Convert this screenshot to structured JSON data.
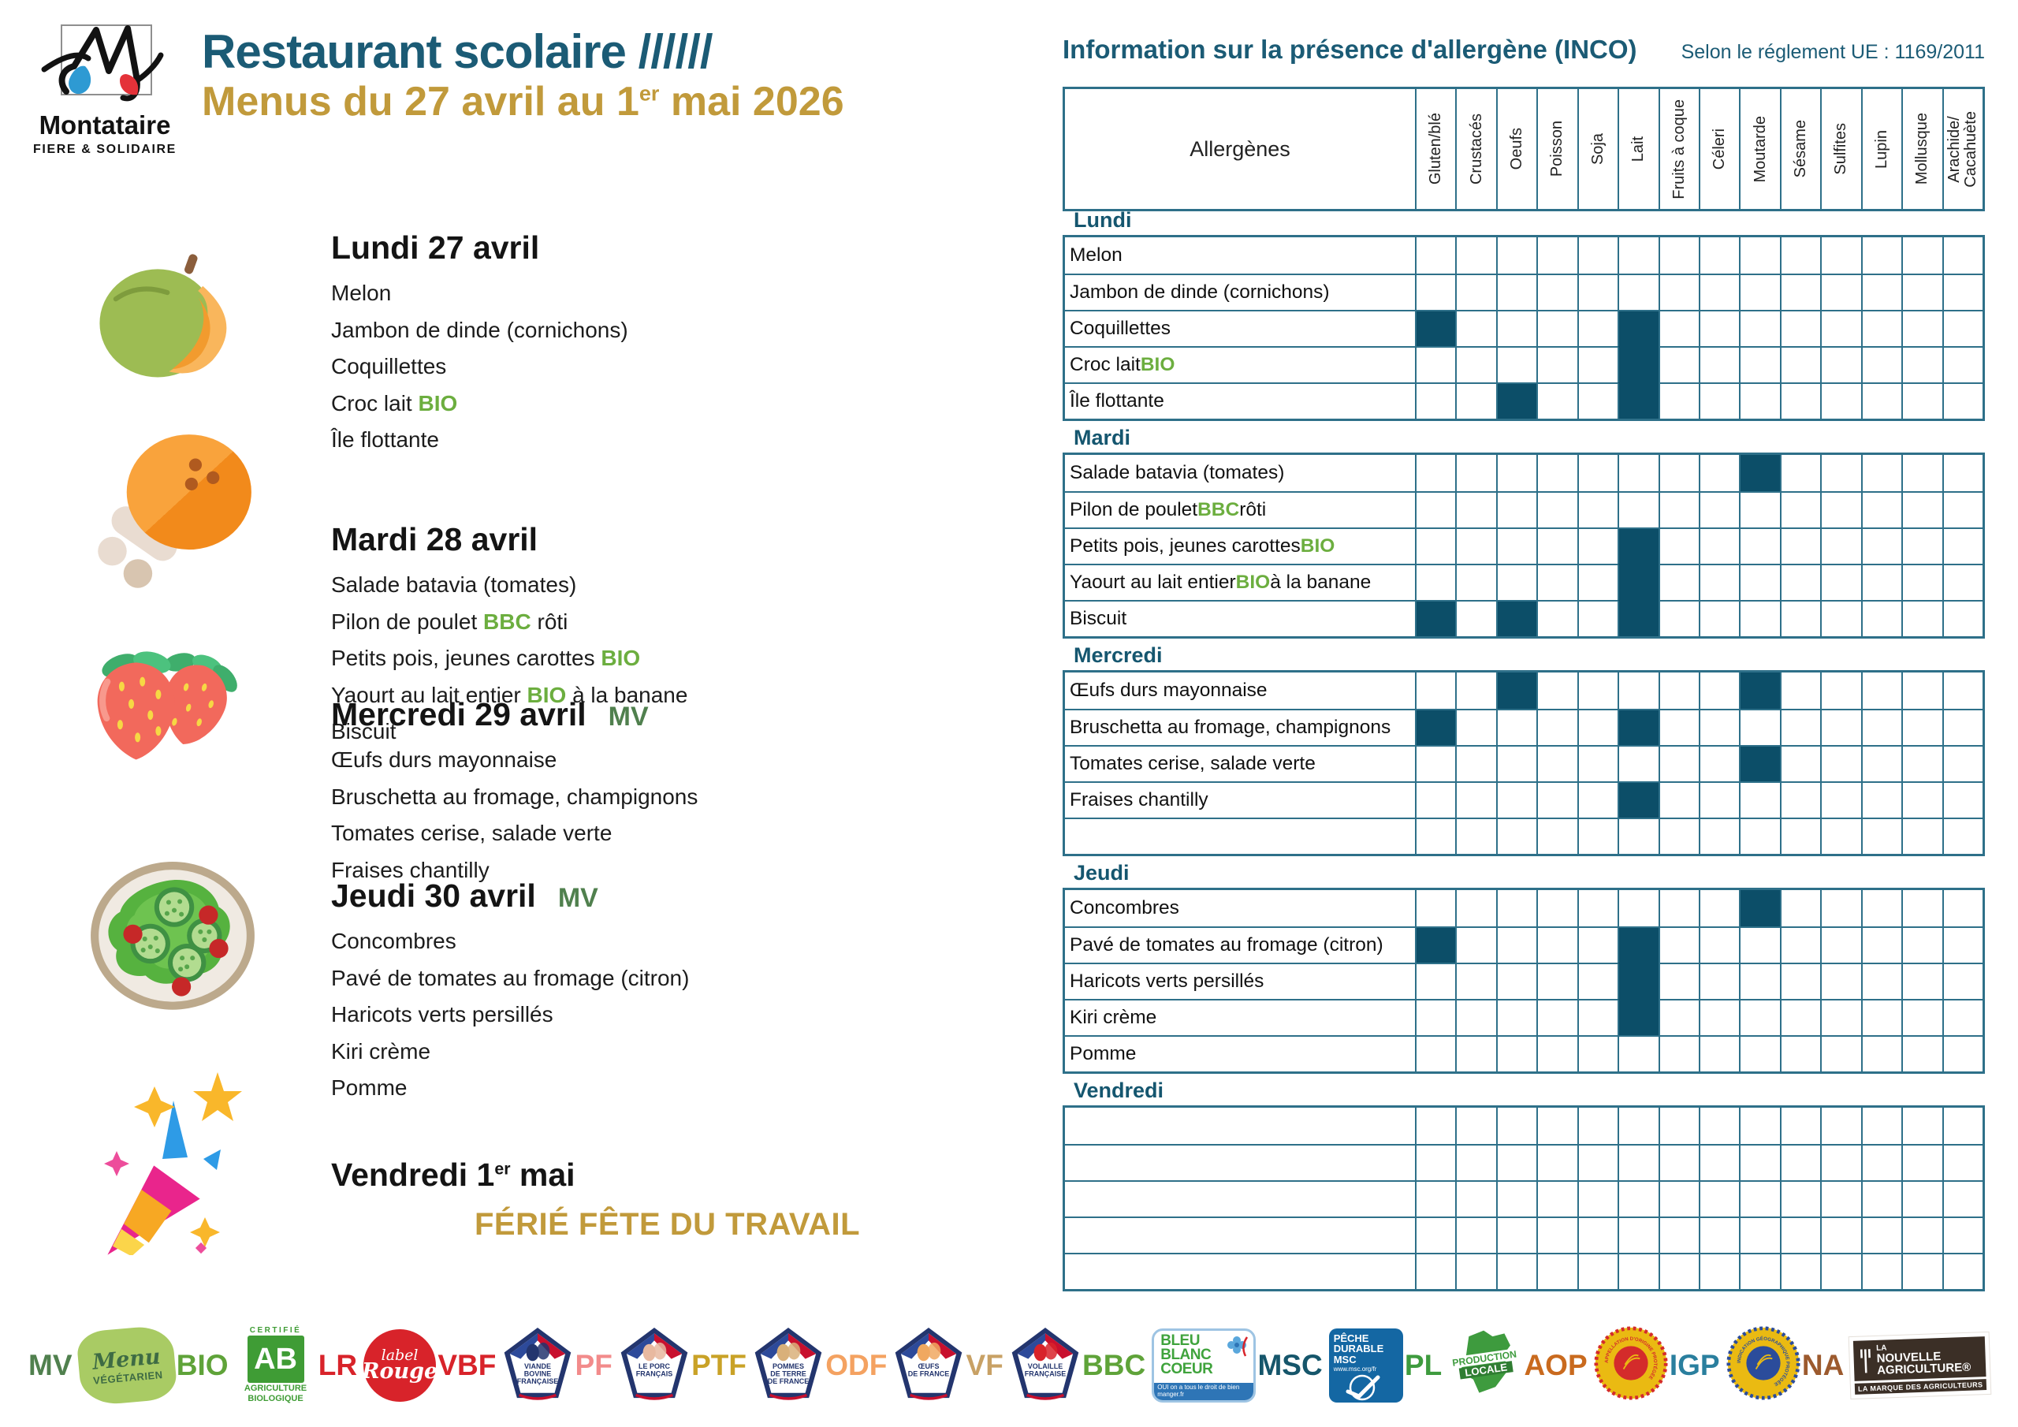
{
  "colors": {
    "teal": "#1B5B75",
    "grid": "#2E7089",
    "cell_fill": "#0C4E68",
    "gold": "#C19A3B",
    "bio_green": "#6CAE3F",
    "mv_green": "#50804E"
  },
  "brand": {
    "name": "Montataire",
    "tagline": "FIERE & SOLIDAIRE"
  },
  "header": {
    "title": "Restaurant scolaire //////",
    "subtitle": {
      "pre": "Menus du 27 avril au 1",
      "sup": "er",
      "post": " mai 2026"
    }
  },
  "allergen_panel": {
    "title": "Information sur la présence d'allergène (INCO)",
    "regulation": "Selon le réglement UE : 1169/2011",
    "col_header": "Allergènes",
    "allergens": [
      "Gluten/blé",
      "Crustacés",
      "Oeufs",
      "Poisson",
      "Soja",
      "Lait",
      "Fruits à coque",
      "Céleri",
      "Moutarde",
      "Sésame",
      "Sulfites",
      "Lupin",
      "Mollusque",
      "Arachide/\nCacahuète"
    ]
  },
  "menu": {
    "days": [
      {
        "id": "lundi",
        "icon": "melon-icon",
        "heading": {
          "pre": "Lundi 27 avril",
          "sup": "",
          "post": ""
        },
        "tag": "",
        "items": [
          [
            {
              "text": "Melon"
            }
          ],
          [
            {
              "text": "Jambon de dinde (cornichons)"
            }
          ],
          [
            {
              "text": "Coquillettes"
            }
          ],
          [
            {
              "text": "Croc lait "
            },
            {
              "text": "BIO",
              "green": true
            }
          ],
          [
            {
              "text": "Île flottante"
            }
          ]
        ]
      },
      {
        "id": "mardi",
        "icon": "drumstick-icon",
        "heading": {
          "pre": "Mardi 28 avril",
          "sup": "",
          "post": ""
        },
        "tag": "",
        "items": [
          [
            {
              "text": "Salade batavia (tomates)"
            }
          ],
          [
            {
              "text": "Pilon de poulet "
            },
            {
              "text": "BBC",
              "green": true
            },
            {
              "text": " rôti"
            }
          ],
          [
            {
              "text": "Petits pois, jeunes carottes "
            },
            {
              "text": "BIO",
              "green": true
            }
          ],
          [
            {
              "text": "Yaourt au lait entier "
            },
            {
              "text": "BIO",
              "green": true
            },
            {
              "text": " à la banane"
            }
          ],
          [
            {
              "text": "Biscuit"
            }
          ]
        ]
      },
      {
        "id": "mercredi",
        "icon": "strawberries-icon",
        "heading": {
          "pre": "Mercredi 29 avril",
          "sup": "",
          "post": ""
        },
        "tag": "MV",
        "items": [
          [
            {
              "text": "Œufs durs mayonnaise"
            }
          ],
          [
            {
              "text": "Bruschetta au fromage, champignons"
            }
          ],
          [
            {
              "text": "Tomates cerise, salade verte"
            }
          ],
          [
            {
              "text": "Fraises chantilly"
            }
          ]
        ]
      },
      {
        "id": "jeudi",
        "icon": "salad-plate-icon",
        "heading": {
          "pre": "Jeudi 30 avril",
          "sup": "",
          "post": ""
        },
        "tag": "MV",
        "items": [
          [
            {
              "text": "Concombres"
            }
          ],
          [
            {
              "text": "Pavé de tomates au fromage (citron)"
            }
          ],
          [
            {
              "text": "Haricots verts persillés"
            }
          ],
          [
            {
              "text": "Kiri crème"
            }
          ],
          [
            {
              "text": "Pomme"
            }
          ]
        ]
      },
      {
        "id": "vendredi",
        "icon": "party-popper-icon",
        "heading": {
          "pre": "Vendredi 1",
          "sup": "er",
          "post": " mai"
        },
        "tag": "",
        "items": [],
        "holiday": "FÉRIÉ FÊTE DU TRAVAIL"
      }
    ]
  },
  "table": {
    "sections": [
      {
        "day": "Lundi",
        "rows": [
          {
            "label": [
              {
                "text": "Melon"
              }
            ],
            "marks": []
          },
          {
            "label": [
              {
                "text": "Jambon de dinde (cornichons)"
              }
            ],
            "marks": []
          },
          {
            "label": [
              {
                "text": "Coquillettes"
              }
            ],
            "marks": [
              0,
              5
            ]
          },
          {
            "label": [
              {
                "text": "Croc lait "
              },
              {
                "text": "BIO",
                "green": true
              }
            ],
            "marks": [
              5
            ]
          },
          {
            "label": [
              {
                "text": "Île flottante"
              }
            ],
            "marks": [
              2,
              5
            ]
          }
        ]
      },
      {
        "day": "Mardi",
        "rows": [
          {
            "label": [
              {
                "text": "Salade batavia (tomates)"
              }
            ],
            "marks": [
              8
            ]
          },
          {
            "label": [
              {
                "text": "Pilon de poulet "
              },
              {
                "text": "BBC",
                "green": true
              },
              {
                "text": " rôti"
              }
            ],
            "marks": []
          },
          {
            "label": [
              {
                "text": "Petits pois, jeunes carottes "
              },
              {
                "text": "BIO",
                "green": true
              }
            ],
            "marks": [
              5
            ]
          },
          {
            "label": [
              {
                "text": "Yaourt au lait entier "
              },
              {
                "text": "BIO",
                "green": true
              },
              {
                "text": " à la banane"
              }
            ],
            "marks": [
              5
            ]
          },
          {
            "label": [
              {
                "text": "Biscuit"
              }
            ],
            "marks": [
              0,
              2,
              5
            ]
          }
        ]
      },
      {
        "day": "Mercredi",
        "rows": [
          {
            "label": [
              {
                "text": "Œufs durs mayonnaise"
              }
            ],
            "marks": [
              2,
              8
            ]
          },
          {
            "label": [
              {
                "text": "Bruschetta au fromage, champignons"
              }
            ],
            "marks": [
              0,
              5
            ]
          },
          {
            "label": [
              {
                "text": "Tomates cerise, salade verte"
              }
            ],
            "marks": [
              8
            ]
          },
          {
            "label": [
              {
                "text": "Fraises chantilly"
              }
            ],
            "marks": [
              5
            ]
          },
          {
            "label": [
              {
                "text": ""
              }
            ],
            "marks": []
          }
        ]
      },
      {
        "day": "Jeudi",
        "rows": [
          {
            "label": [
              {
                "text": "Concombres"
              }
            ],
            "marks": [
              8
            ]
          },
          {
            "label": [
              {
                "text": "Pavé de tomates au fromage (citron)"
              }
            ],
            "marks": [
              0,
              5
            ]
          },
          {
            "label": [
              {
                "text": "Haricots verts persillés"
              }
            ],
            "marks": [
              5
            ]
          },
          {
            "label": [
              {
                "text": "Kiri crème"
              }
            ],
            "marks": [
              5
            ]
          },
          {
            "label": [
              {
                "text": "Pomme"
              }
            ],
            "marks": []
          }
        ]
      },
      {
        "day": "Vendredi",
        "rows": [
          {
            "label": [
              {
                "text": ""
              }
            ],
            "marks": []
          },
          {
            "label": [
              {
                "text": ""
              }
            ],
            "marks": []
          },
          {
            "label": [
              {
                "text": ""
              }
            ],
            "marks": []
          },
          {
            "label": [
              {
                "text": ""
              }
            ],
            "marks": []
          },
          {
            "label": [
              {
                "text": ""
              }
            ],
            "marks": []
          }
        ]
      }
    ]
  },
  "footer": {
    "logos": [
      {
        "acronym": "MV",
        "color": "#50804E",
        "type": "blob",
        "lines": [
          "Menu",
          "VÉGÉTARIEN"
        ]
      },
      {
        "acronym": "BIO",
        "color": "#5FA339",
        "type": "ab",
        "cert": "CERTIFIÉ",
        "ab": "AB",
        "lines": [
          "AGRICULTURE",
          "BIOLOGIQUE"
        ]
      },
      {
        "acronym": "LR",
        "color": "#D8232A",
        "type": "lr",
        "lines": [
          "label",
          "Rouge"
        ]
      },
      {
        "acronym": "VBF",
        "color": "#D8232A",
        "type": "shield",
        "emblem": "#23356E",
        "lines": [
          "VIANDE",
          "BOVINE",
          "FRANÇAISE"
        ]
      },
      {
        "acronym": "PF",
        "color": "#F28B8B",
        "type": "shield",
        "emblem": "#E8B9A0",
        "lines": [
          "LE PORC",
          "FRANÇAIS"
        ]
      },
      {
        "acronym": "PTF",
        "color": "#C9A227",
        "type": "shield",
        "emblem": "#D9B07A",
        "lines": [
          "POMMES",
          "DE TERRE",
          "DE FRANCE"
        ]
      },
      {
        "acronym": "ODF",
        "color": "#F4A261",
        "type": "shield",
        "emblem": "#F0A860",
        "lines": [
          "ŒUFS",
          "DE FRANCE"
        ]
      },
      {
        "acronym": "VF",
        "color": "#C8A165",
        "type": "shield",
        "emblem": "#D8232A",
        "lines": [
          "VOLAILLE",
          "FRANÇAISE"
        ]
      },
      {
        "acronym": "BBC",
        "color": "#5FA339",
        "type": "bbc",
        "lines": [
          "BLEU",
          "BLANC",
          "COEUR"
        ],
        "sub": "OUI on a tous le droit de bien manger.fr"
      },
      {
        "acronym": "MSC",
        "color": "#16566B",
        "type": "msc",
        "lines": [
          "PÊCHE",
          "DURABLE",
          "MSC"
        ],
        "sub": "www.msc.org/fr"
      },
      {
        "acronym": "PL",
        "color": "#3E9B3E",
        "type": "map",
        "lines": [
          "PRODUCTION",
          "LOCALE"
        ]
      },
      {
        "acronym": "AOP",
        "color": "#C96A1E",
        "type": "seal",
        "ring_label": "APPELLATION D'ORIGINE PROTÉGÉE",
        "outer": "#D42B2B",
        "mid": "#EABA12",
        "center": "#D42B2B"
      },
      {
        "acronym": "IGP",
        "color": "#2A7F9E",
        "type": "seal",
        "ring_label": "INDICATION GÉOGRAPHIQUE PROTÉGÉE",
        "outer": "#2B4C9B",
        "mid": "#EABA12",
        "center": "#2B4C9B"
      },
      {
        "acronym": "NA",
        "color": "#9C5A2E",
        "type": "na",
        "lines": [
          "LA",
          "NOUVELLE",
          "AGRICULTURE®"
        ],
        "sub": "LA MARQUE DES AGRICULTEURS"
      }
    ]
  }
}
